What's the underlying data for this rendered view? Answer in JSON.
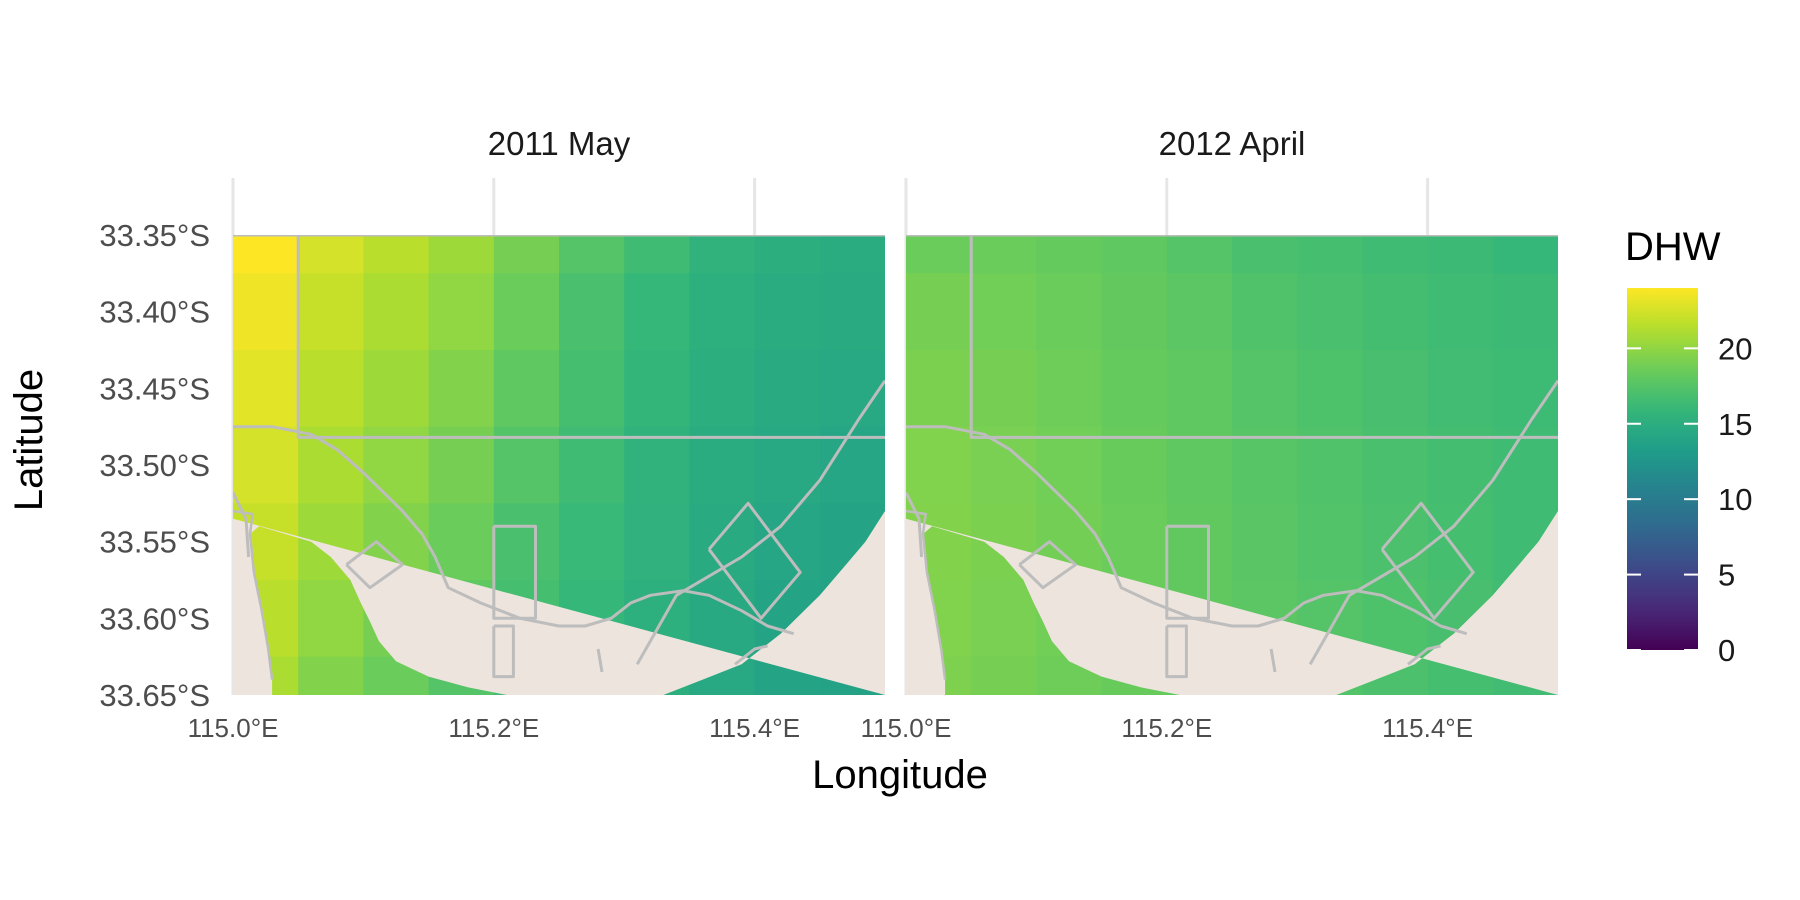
{
  "chart_data": {
    "type": "heatmap",
    "xlabel": "Longitude",
    "ylabel": "Latitude",
    "x_ticks": [
      115.0,
      115.2,
      115.4
    ],
    "x_tick_labels": [
      "115.0°E",
      "115.2°E",
      "115.4°E"
    ],
    "y_ticks": [
      -33.35,
      -33.4,
      -33.45,
      -33.5,
      -33.55,
      -33.6,
      -33.65
    ],
    "y_tick_labels": [
      "33.35°S",
      "33.40°S",
      "33.45°S",
      "33.50°S",
      "33.55°S",
      "33.60°S",
      "33.65°S"
    ],
    "xlim": [
      115.0,
      115.5
    ],
    "ylim": [
      -33.65,
      -33.35
    ],
    "grid": true,
    "legend": {
      "title": "DHW",
      "position": "right",
      "range": [
        0,
        24
      ],
      "breaks": [
        0,
        5,
        10,
        15,
        20
      ],
      "break_labels": [
        "0",
        "5",
        "10",
        "15",
        "20"
      ],
      "palette": "viridis"
    },
    "colors": {
      "land": "#ede4dd",
      "outline": "#bdbdbd",
      "grid": "#e6e6e6"
    },
    "x": [
      115.0,
      115.05,
      115.1,
      115.15,
      115.2,
      115.25,
      115.3,
      115.35,
      115.4,
      115.45
    ],
    "y": [
      -33.35,
      -33.4,
      -33.45,
      -33.5,
      -33.55,
      -33.6,
      -33.65
    ],
    "panels": [
      {
        "title": "2011 May",
        "z": [
          [
            24,
            22.5,
            21.5,
            20.5,
            19,
            17.5,
            16.5,
            15.5,
            15,
            14.8
          ],
          [
            23.5,
            22,
            21,
            20,
            18.5,
            17,
            16,
            15.2,
            14.8,
            14.6
          ],
          [
            23,
            21.5,
            20.5,
            19.5,
            18,
            16.8,
            15.8,
            15,
            14.6,
            14.4
          ],
          [
            22.5,
            21,
            20,
            19,
            17.5,
            16.5,
            15.5,
            14.8,
            14.4,
            14.2
          ],
          [
            22,
            20.5,
            19.5,
            18.5,
            17,
            16.2,
            15.4,
            14.6,
            14.2,
            14
          ],
          [
            21.5,
            20,
            19,
            18,
            16.8,
            16,
            15.2,
            14.5,
            14,
            13.8
          ],
          [
            21,
            19.5,
            18.5,
            17.5,
            16.5,
            15.8,
            15,
            14.4,
            14,
            13.8
          ]
        ]
      },
      {
        "title": "2012 April",
        "z": [
          [
            18.5,
            18.5,
            18.3,
            18,
            17.5,
            17,
            16.8,
            16.5,
            16.3,
            16
          ],
          [
            19,
            18.8,
            18.5,
            18.2,
            17.8,
            17.3,
            17,
            16.7,
            16.5,
            16.3
          ],
          [
            19.2,
            19,
            18.7,
            18.3,
            18,
            17.5,
            17.2,
            16.9,
            16.6,
            16.4
          ],
          [
            19.4,
            19.1,
            18.8,
            18.4,
            18,
            17.6,
            17.3,
            17,
            16.7,
            16.5
          ],
          [
            19.5,
            19.2,
            18.9,
            18.5,
            18.1,
            17.7,
            17.4,
            17.1,
            16.8,
            16.5
          ],
          [
            19.4,
            19.1,
            18.8,
            18.5,
            18.1,
            17.8,
            17.5,
            17.2,
            16.9,
            16.6
          ],
          [
            19.3,
            19,
            18.7,
            18.4,
            18,
            17.7,
            17.4,
            17.1,
            16.8,
            16.6
          ]
        ]
      }
    ]
  }
}
